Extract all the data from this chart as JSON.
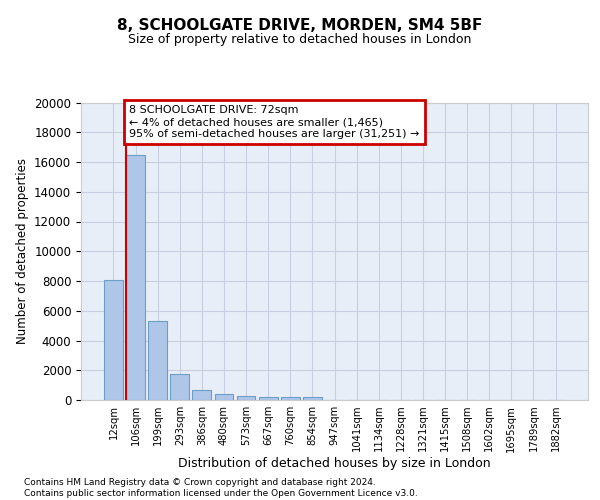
{
  "title": "8, SCHOOLGATE DRIVE, MORDEN, SM4 5BF",
  "subtitle": "Size of property relative to detached houses in London",
  "xlabel": "Distribution of detached houses by size in London",
  "ylabel": "Number of detached properties",
  "categories": [
    "12sqm",
    "106sqm",
    "199sqm",
    "293sqm",
    "386sqm",
    "480sqm",
    "573sqm",
    "667sqm",
    "760sqm",
    "854sqm",
    "947sqm",
    "1041sqm",
    "1134sqm",
    "1228sqm",
    "1321sqm",
    "1415sqm",
    "1508sqm",
    "1602sqm",
    "1695sqm",
    "1789sqm",
    "1882sqm"
  ],
  "values": [
    8100,
    16500,
    5300,
    1750,
    650,
    380,
    300,
    230,
    200,
    185,
    0,
    0,
    0,
    0,
    0,
    0,
    0,
    0,
    0,
    0,
    0
  ],
  "bar_color": "#aec6e8",
  "bar_edge_color": "#6b9fc8",
  "annotation_box_color": "#cc0000",
  "annotation_line1": "8 SCHOOLGATE DRIVE: 72sqm",
  "annotation_line2": "← 4% of detached houses are smaller (1,465)",
  "annotation_line3": "95% of semi-detached houses are larger (31,251) →",
  "vline_x_idx": 0.57,
  "ylim": [
    0,
    20000
  ],
  "yticks": [
    0,
    2000,
    4000,
    6000,
    8000,
    10000,
    12000,
    14000,
    16000,
    18000,
    20000
  ],
  "grid_color": "#c8cfe0",
  "background_color": "#e8eef8",
  "footer_line1": "Contains HM Land Registry data © Crown copyright and database right 2024.",
  "footer_line2": "Contains public sector information licensed under the Open Government Licence v3.0."
}
